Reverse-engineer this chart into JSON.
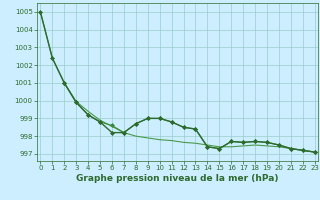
{
  "line1": {
    "x": [
      0,
      1,
      2,
      3,
      4,
      5,
      6,
      7,
      8,
      9,
      10,
      11,
      12,
      13,
      14,
      15,
      16,
      17,
      18,
      19,
      20,
      21,
      22,
      23
    ],
    "y": [
      1005.0,
      1002.4,
      1001.0,
      999.9,
      999.2,
      998.8,
      998.2,
      998.2,
      998.7,
      999.0,
      999.0,
      998.8,
      998.5,
      998.4,
      997.4,
      997.3,
      997.7,
      997.65,
      997.7,
      997.65,
      997.5,
      997.3,
      997.2,
      997.1
    ],
    "color": "#2d6a2d",
    "linewidth": 1.0,
    "marker": "D",
    "markersize": 2.0
  },
  "line2": {
    "x": [
      2,
      3,
      4,
      5,
      6,
      7,
      8,
      9,
      10,
      11,
      12,
      13,
      14,
      15,
      16,
      17,
      18,
      19,
      20,
      21,
      22,
      23
    ],
    "y": [
      1001.0,
      999.9,
      999.2,
      998.8,
      998.6,
      998.2,
      998.7,
      999.0,
      999.0,
      998.8,
      998.5,
      998.4,
      997.4,
      997.3,
      997.7,
      997.65,
      997.7,
      997.65,
      997.5,
      997.3,
      997.2,
      997.1
    ],
    "color": "#3a8a3a",
    "linewidth": 0.8,
    "marker": "D",
    "markersize": 2.0
  },
  "line3": {
    "x": [
      0,
      1,
      2,
      3,
      4,
      5,
      6,
      7,
      8,
      9,
      10,
      11,
      12,
      13,
      14,
      15,
      16,
      17,
      18,
      19,
      20,
      21,
      22,
      23
    ],
    "y": [
      1005.0,
      1002.4,
      1001.0,
      999.95,
      999.4,
      998.9,
      998.55,
      998.2,
      998.0,
      997.9,
      997.8,
      997.75,
      997.65,
      997.6,
      997.5,
      997.4,
      997.4,
      997.45,
      997.5,
      997.45,
      997.4,
      997.3,
      997.2,
      997.1
    ],
    "color": "#4a9a4a",
    "linewidth": 0.8,
    "marker": null,
    "markersize": 0
  },
  "xlim": [
    -0.3,
    23.3
  ],
  "ylim": [
    996.6,
    1005.5
  ],
  "yticks": [
    997,
    998,
    999,
    1000,
    1001,
    1002,
    1003,
    1004,
    1005
  ],
  "xticks": [
    0,
    1,
    2,
    3,
    4,
    5,
    6,
    7,
    8,
    9,
    10,
    11,
    12,
    13,
    14,
    15,
    16,
    17,
    18,
    19,
    20,
    21,
    22,
    23
  ],
  "xlabel": "Graphe pression niveau de la mer (hPa)",
  "bg_color": "#cceeff",
  "grid_color": "#99cccc",
  "axis_color": "#2d6a2d",
  "label_color": "#2d6a2d",
  "tick_color": "#2d6a2d",
  "xlabel_fontsize": 6.5,
  "tick_fontsize": 5.0,
  "fig_width": 3.2,
  "fig_height": 2.0,
  "dpi": 100
}
